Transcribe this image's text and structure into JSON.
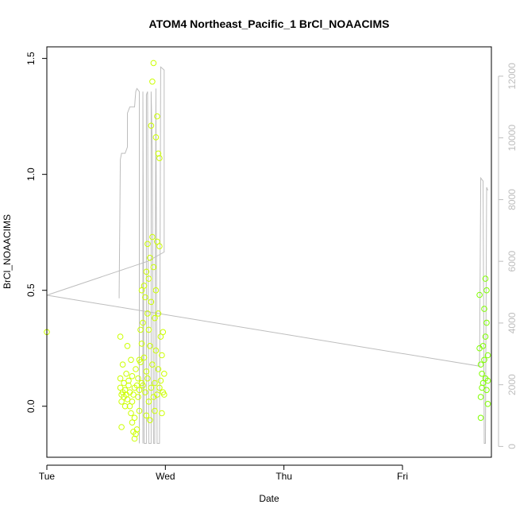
{
  "chart_data": {
    "type": "scatter",
    "title": "ATOM4 Northeast_Pacific_1 BrCl_NOAACIMS",
    "xlabel": "Date",
    "ylabel": "BrCl_NOAACIMS",
    "x_range": [
      0,
      3.75
    ],
    "x_ticks": [
      {
        "value": 0,
        "label": "Tue"
      },
      {
        "value": 1,
        "label": "Wed"
      },
      {
        "value": 2,
        "label": "Thu"
      },
      {
        "value": 3,
        "label": "Fri"
      }
    ],
    "ylim": [
      -0.22,
      1.55
    ],
    "y_ticks": [
      0.0,
      0.5,
      1.0,
      1.5
    ],
    "y_tick_labels": [
      "0.0",
      "0.5",
      "1.0",
      "1.5"
    ],
    "y2lim": [
      -350,
      12950
    ],
    "y2_ticks": [
      0,
      2000,
      4000,
      6000,
      8000,
      10000,
      12000
    ],
    "y2_tick_labels": [
      "0",
      "2000",
      "4000",
      "6000",
      "8000",
      "10000",
      "12000"
    ],
    "colors": {
      "points_early": "#ccff00",
      "points_late": "#7fff00",
      "altitude_line": "#bdbdbd",
      "axis": "#000000",
      "right_axis": "#bdbdbd"
    },
    "series": [
      {
        "type": "scatter",
        "points": [
          [
            0.0,
            0.32
          ],
          [
            0.62,
            0.3
          ],
          [
            0.62,
            0.12
          ],
          [
            0.62,
            0.08
          ],
          [
            0.63,
            0.05
          ],
          [
            0.63,
            0.02
          ],
          [
            0.63,
            -0.09
          ],
          [
            0.64,
            0.18
          ],
          [
            0.64,
            0.06
          ],
          [
            0.65,
            0.1
          ],
          [
            0.65,
            0.04
          ],
          [
            0.66,
            0.0
          ],
          [
            0.66,
            0.07
          ],
          [
            0.67,
            0.14
          ],
          [
            0.67,
            0.05
          ],
          [
            0.68,
            0.26
          ],
          [
            0.68,
            0.03
          ],
          [
            0.69,
            0.09
          ],
          [
            0.69,
            0.11
          ],
          [
            0.7,
            0.06
          ],
          [
            0.7,
            0.0
          ],
          [
            0.71,
            0.2
          ],
          [
            0.71,
            -0.03
          ],
          [
            0.72,
            0.13
          ],
          [
            0.72,
            0.02
          ],
          [
            0.72,
            -0.07
          ],
          [
            0.73,
            -0.11
          ],
          [
            0.73,
            0.05
          ],
          [
            0.74,
            -0.14
          ],
          [
            0.74,
            0.08
          ],
          [
            0.74,
            -0.05
          ],
          [
            0.75,
            -0.12
          ],
          [
            0.75,
            0.16
          ],
          [
            0.76,
            0.09
          ],
          [
            0.76,
            -0.1
          ],
          [
            0.77,
            0.04
          ],
          [
            0.77,
            0.12
          ],
          [
            0.78,
            0.2
          ],
          [
            0.78,
            0.07
          ],
          [
            0.78,
            -0.02
          ],
          [
            0.79,
            0.33
          ],
          [
            0.79,
            0.19
          ],
          [
            0.8,
            0.5
          ],
          [
            0.8,
            0.27
          ],
          [
            0.8,
            0.1
          ],
          [
            0.81,
            0.36
          ],
          [
            0.81,
            0.09
          ],
          [
            0.82,
            0.52
          ],
          [
            0.82,
            0.21
          ],
          [
            0.83,
            0.06
          ],
          [
            0.83,
            0.47
          ],
          [
            0.84,
            0.58
          ],
          [
            0.84,
            0.15
          ],
          [
            0.84,
            -0.04
          ],
          [
            0.85,
            0.7
          ],
          [
            0.85,
            0.4
          ],
          [
            0.85,
            0.12
          ],
          [
            0.86,
            0.55
          ],
          [
            0.86,
            0.33
          ],
          [
            0.86,
            0.02
          ],
          [
            0.87,
            0.64
          ],
          [
            0.87,
            0.26
          ],
          [
            0.87,
            -0.06
          ],
          [
            0.88,
            1.21
          ],
          [
            0.88,
            0.45
          ],
          [
            0.88,
            0.08
          ],
          [
            0.89,
            1.4
          ],
          [
            0.89,
            0.73
          ],
          [
            0.89,
            0.18
          ],
          [
            0.9,
            1.48
          ],
          [
            0.9,
            0.6
          ],
          [
            0.9,
            0.04
          ],
          [
            0.91,
            0.38
          ],
          [
            0.91,
            0.1
          ],
          [
            0.91,
            -0.02
          ],
          [
            0.92,
            1.16
          ],
          [
            0.92,
            0.5
          ],
          [
            0.92,
            0.24
          ],
          [
            0.93,
            1.25
          ],
          [
            0.93,
            0.71
          ],
          [
            0.93,
            0.05
          ],
          [
            0.94,
            1.09
          ],
          [
            0.94,
            0.4
          ],
          [
            0.94,
            0.16
          ],
          [
            0.95,
            1.07
          ],
          [
            0.95,
            0.69
          ],
          [
            0.95,
            0.08
          ],
          [
            0.96,
            0.3
          ],
          [
            0.96,
            0.11
          ],
          [
            0.97,
            0.22
          ],
          [
            0.97,
            -0.03
          ],
          [
            0.98,
            0.06
          ],
          [
            0.98,
            0.32
          ],
          [
            0.99,
            0.14
          ],
          [
            0.99,
            0.05
          ]
        ]
      },
      {
        "type": "scatter",
        "points": [
          [
            3.65,
            0.48
          ],
          [
            3.65,
            0.25
          ],
          [
            3.66,
            0.18
          ],
          [
            3.66,
            0.04
          ],
          [
            3.66,
            -0.05
          ],
          [
            3.67,
            0.14
          ],
          [
            3.67,
            0.08
          ],
          [
            3.68,
            0.26
          ],
          [
            3.68,
            0.1
          ],
          [
            3.69,
            0.42
          ],
          [
            3.69,
            0.2
          ],
          [
            3.7,
            0.55
          ],
          [
            3.7,
            0.3
          ],
          [
            3.7,
            0.12
          ],
          [
            3.71,
            0.36
          ],
          [
            3.71,
            0.5
          ],
          [
            3.71,
            0.07
          ],
          [
            3.72,
            0.22
          ],
          [
            3.72,
            0.11
          ],
          [
            3.72,
            0.01
          ]
        ]
      },
      {
        "type": "line",
        "axis": "right",
        "segments": [
          [
            [
              0.61,
              4800
            ],
            [
              0.61,
              5000
            ],
            [
              0.62,
              9300
            ],
            [
              0.63,
              9500
            ],
            [
              0.66,
              9500
            ],
            [
              0.68,
              9700
            ],
            [
              0.68,
              10800
            ],
            [
              0.7,
              11000
            ],
            [
              0.74,
              11000
            ],
            [
              0.75,
              11500
            ],
            [
              0.76,
              11600
            ],
            [
              0.78,
              11500
            ],
            [
              0.78,
              100
            ]
          ],
          [
            [
              0.81,
              100
            ],
            [
              0.81,
              11500
            ],
            [
              0.82,
              100
            ],
            [
              0.84,
              100
            ],
            [
              0.84,
              11400
            ],
            [
              0.85,
              11500
            ],
            [
              0.86,
              100
            ],
            [
              0.88,
              100
            ],
            [
              0.88,
              11500
            ],
            [
              0.89,
              9500
            ],
            [
              0.9,
              100
            ],
            [
              0.91,
              100
            ],
            [
              0.92,
              11600
            ],
            [
              0.93,
              100
            ],
            [
              0.95,
              100
            ],
            [
              0.96,
              12300
            ],
            [
              0.99,
              12200
            ],
            [
              0.99,
              6300
            ],
            [
              0.85,
              6000
            ],
            [
              0.0,
              4900
            ],
            [
              3.65,
              2600
            ],
            [
              3.66,
              8700
            ],
            [
              3.68,
              8600
            ],
            [
              3.69,
              100
            ],
            [
              3.7,
              100
            ],
            [
              3.71,
              8400
            ],
            [
              3.72,
              8300
            ]
          ]
        ]
      }
    ]
  }
}
